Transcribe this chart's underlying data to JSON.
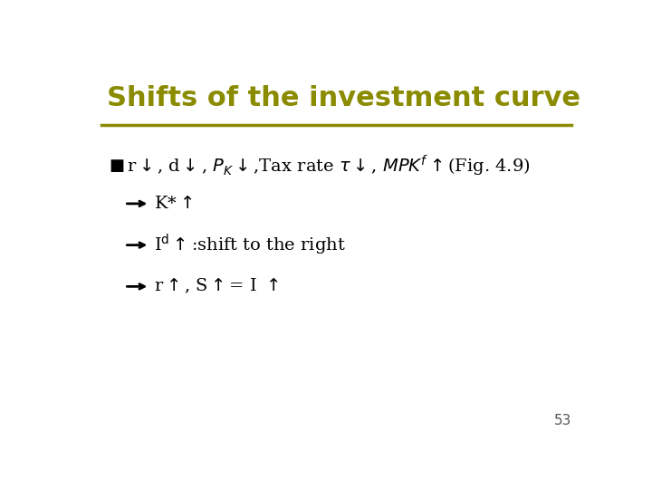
{
  "title": "Shifts of the investment curve",
  "title_color": "#8B8B00",
  "title_fontsize": 22,
  "title_bold": true,
  "bg_color": "#FFFFFF",
  "line_color": "#8B8B00",
  "text_color": "#000000",
  "bullet_color": "#000000",
  "page_number": "53",
  "arrow_color": "#000000"
}
